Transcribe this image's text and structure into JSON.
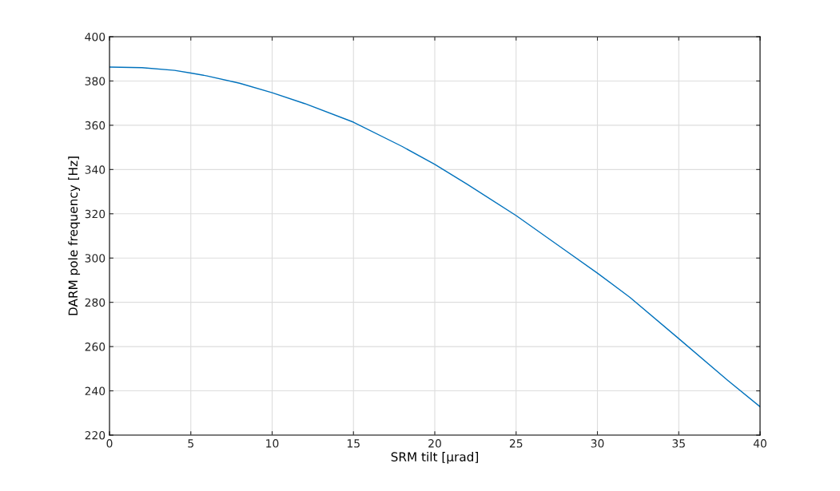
{
  "chart_data": {
    "type": "line",
    "xlabel": "SRM tilt [μrad]",
    "ylabel": "DARM pole frequency [Hz]",
    "x": [
      0,
      2,
      4,
      5,
      6,
      8,
      10,
      12,
      15,
      18,
      20,
      22,
      25,
      28,
      30,
      32,
      35,
      38,
      40
    ],
    "series": [
      {
        "color": "#0072bd",
        "values": [
          386.3,
          386,
          384.8,
          383.6,
          382.3,
          379,
          374.7,
          369.8,
          361.4,
          350.4,
          342.3,
          333.3,
          319.2,
          303.6,
          293.2,
          282.2,
          263.6,
          244.8,
          232.8
        ]
      }
    ],
    "xlim": [
      0,
      40
    ],
    "ylim": [
      220,
      400
    ],
    "xticks": [
      0,
      5,
      10,
      15,
      20,
      25,
      30,
      35,
      40
    ],
    "yticks": [
      220,
      240,
      260,
      280,
      300,
      320,
      340,
      360,
      380,
      400
    ],
    "grid": true,
    "marker": "none",
    "line_style": "solid",
    "legend": false
  }
}
